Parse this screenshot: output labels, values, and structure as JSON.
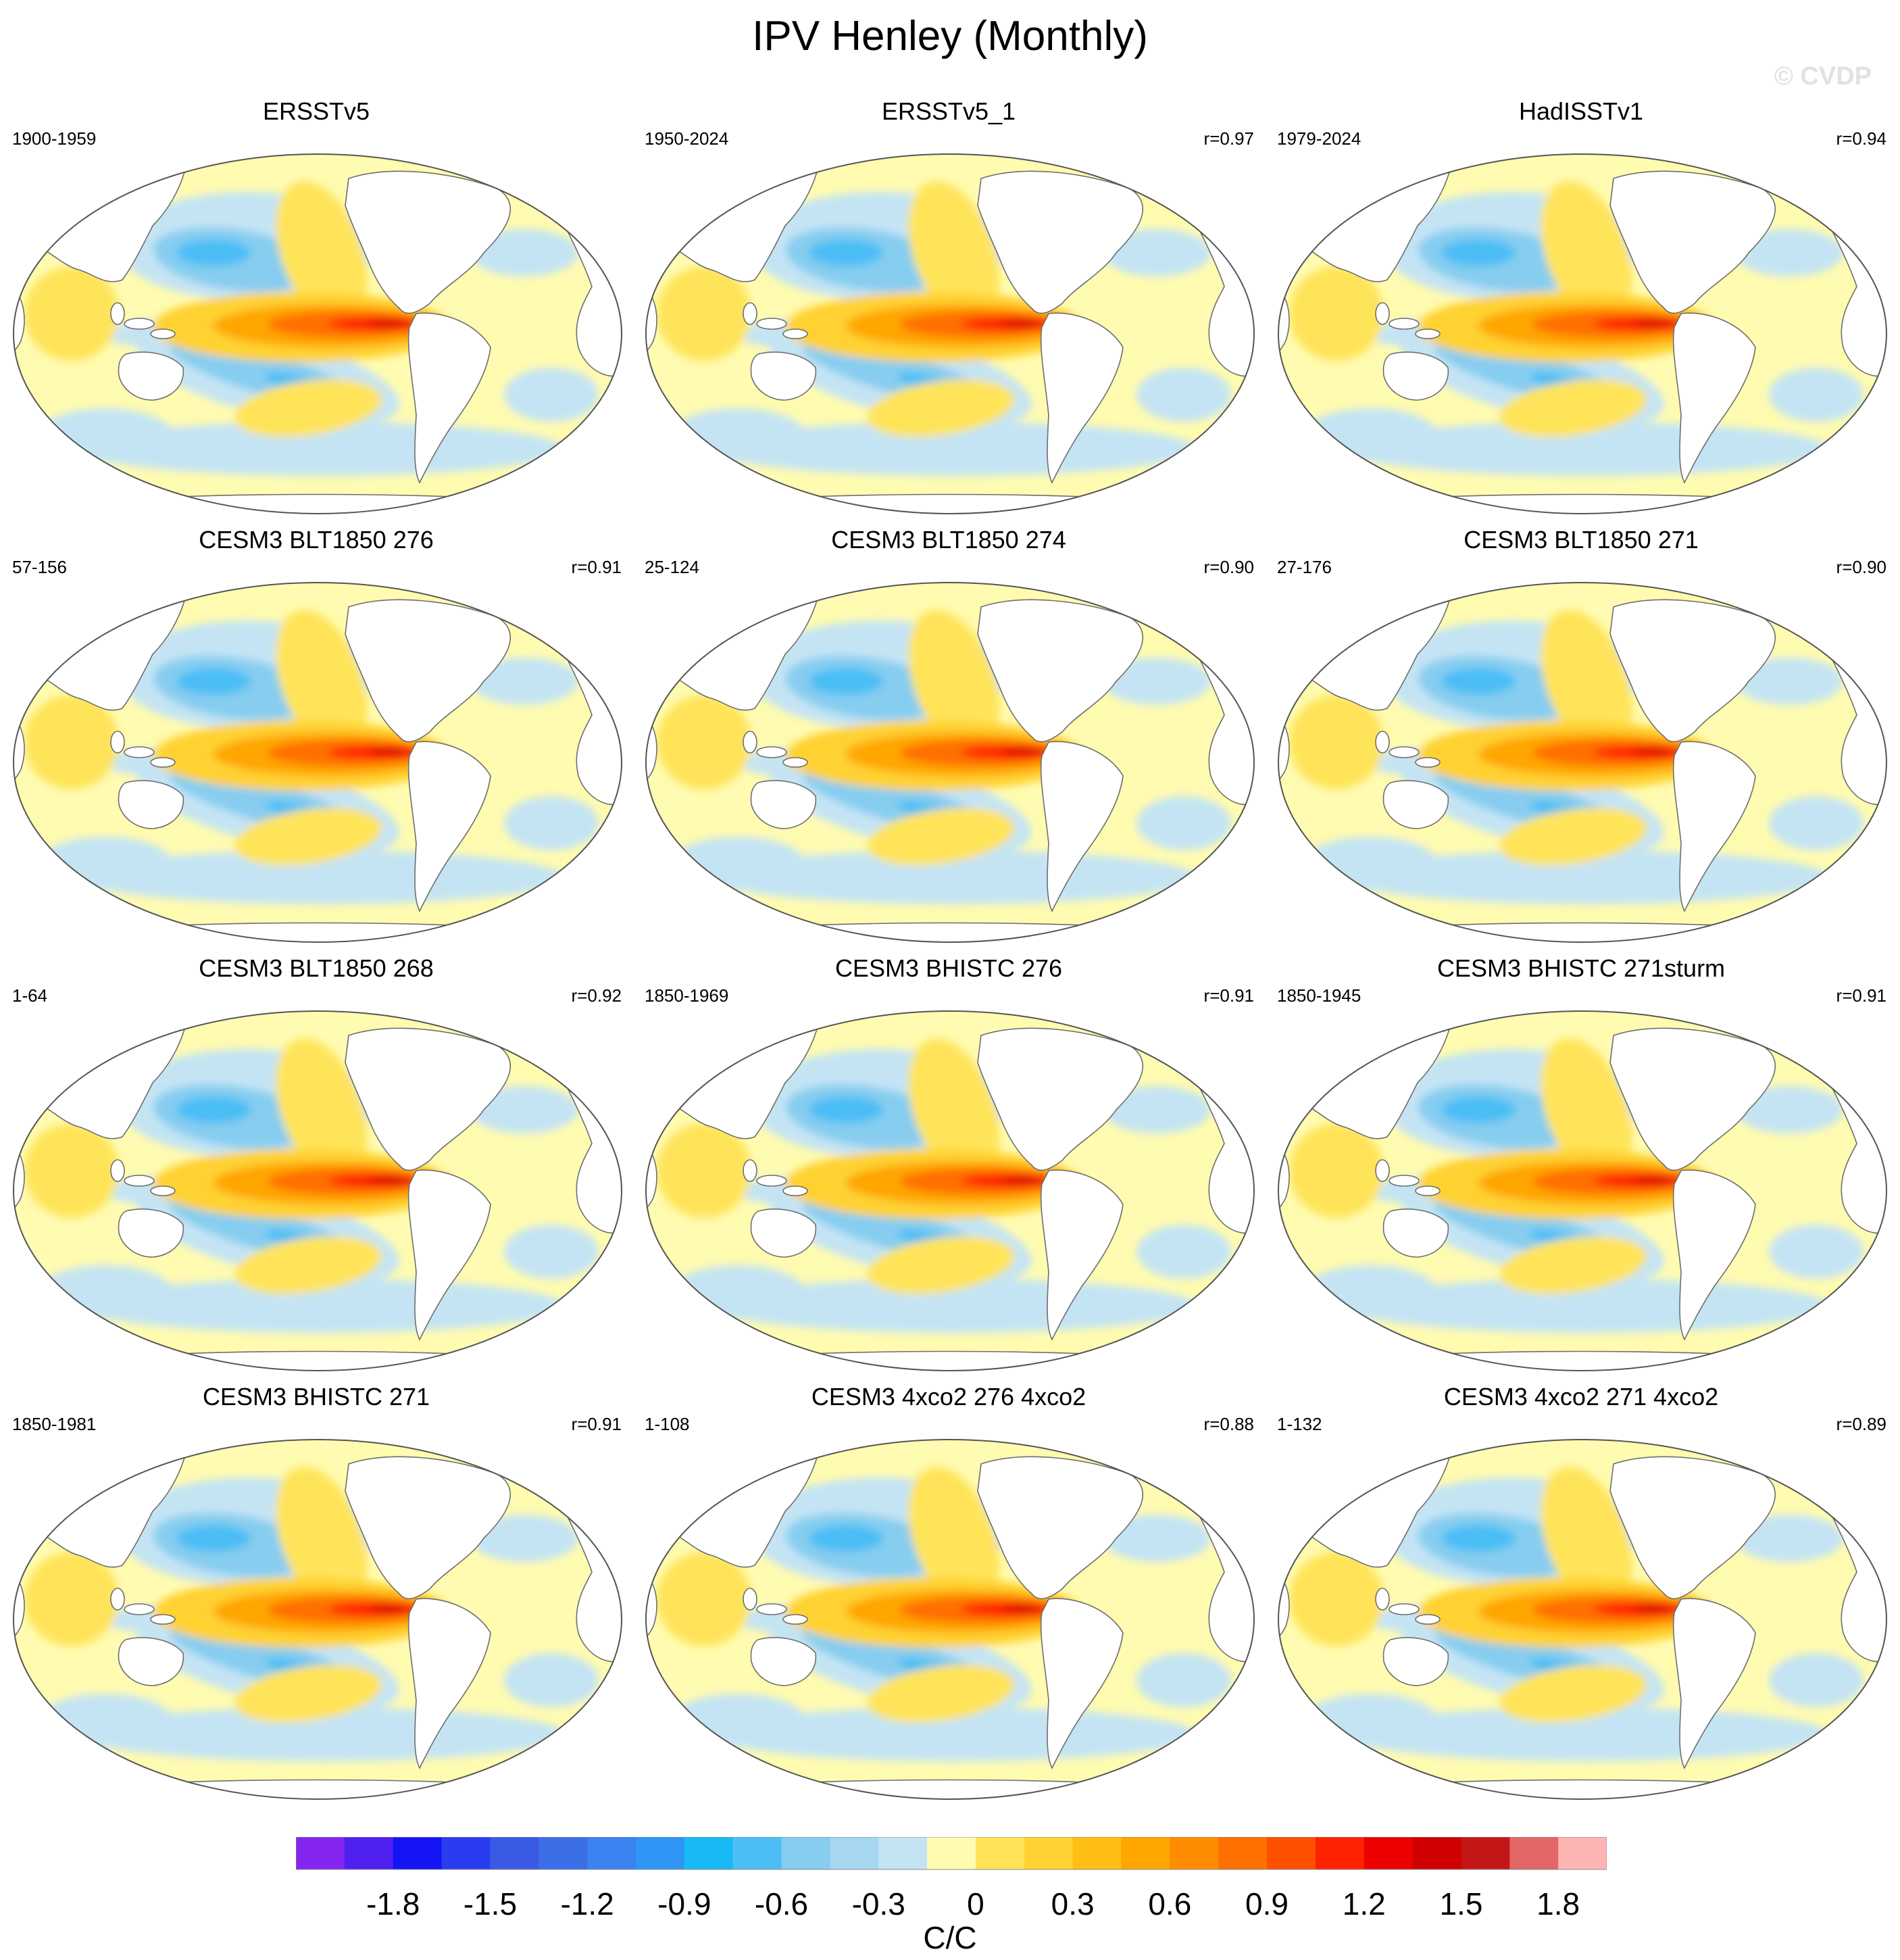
{
  "title": "IPV Henley (Monthly)",
  "watermark": "© CVDP",
  "panels": [
    {
      "title": "ERSSTv5",
      "period": "1900-1959",
      "corr": ""
    },
    {
      "title": "ERSSTv5_1",
      "period": "1950-2024",
      "corr": "r=0.97"
    },
    {
      "title": "HadISSTv1",
      "period": "1979-2024",
      "corr": "r=0.94"
    },
    {
      "title": "CESM3 BLT1850 276",
      "period": "57-156",
      "corr": "r=0.91"
    },
    {
      "title": "CESM3 BLT1850 274",
      "period": "25-124",
      "corr": "r=0.90"
    },
    {
      "title": "CESM3 BLT1850 271",
      "period": "27-176",
      "corr": "r=0.90"
    },
    {
      "title": "CESM3 BLT1850 268",
      "period": "1-64",
      "corr": "r=0.92"
    },
    {
      "title": "CESM3 BHISTC 276",
      "period": "1850-1969",
      "corr": "r=0.91"
    },
    {
      "title": "CESM3 BHISTC 271sturm",
      "period": "1850-1945",
      "corr": "r=0.91"
    },
    {
      "title": "CESM3 BHISTC 271",
      "period": "1850-1981",
      "corr": "r=0.91"
    },
    {
      "title": "CESM3 4xco2 276 4xco2",
      "period": "1-108",
      "corr": "r=0.88"
    },
    {
      "title": "CESM3 4xco2 271 4xco2",
      "period": "1-132",
      "corr": "r=0.89"
    }
  ],
  "colorbar": {
    "colors": [
      "#8426f0",
      "#5020f0",
      "#1414f5",
      "#2a3cf0",
      "#3a5ae6",
      "#3c6ee8",
      "#3c82f0",
      "#2f96f5",
      "#18baf5",
      "#4cbef5",
      "#86cdf0",
      "#a6d6f0",
      "#c4e4f4",
      "#fffbb0",
      "#ffe45a",
      "#ffd232",
      "#ffbe14",
      "#ffa600",
      "#ff8c00",
      "#ff7000",
      "#ff5000",
      "#ff2200",
      "#ec0000",
      "#d00000",
      "#c41616",
      "#e26666",
      "#ffb4b4"
    ],
    "ticks": [
      "-1.8",
      "-1.5",
      "-1.2",
      "-0.9",
      "-0.6",
      "-0.3",
      "0",
      "0.3",
      "0.6",
      "0.9",
      "1.2",
      "1.5",
      "1.8"
    ],
    "units": "C/C"
  }
}
